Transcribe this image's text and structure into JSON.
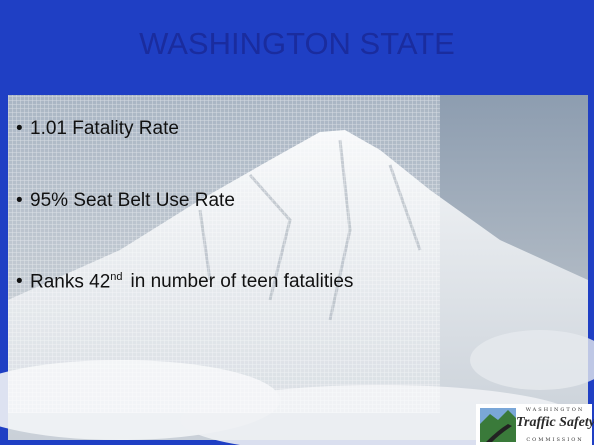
{
  "title": "WASHINGTON STATE",
  "bullets": [
    {
      "text": "1.01 Fatality Rate"
    },
    {
      "text": "95% Seat Belt Use Rate"
    },
    {
      "text": "Ranks 42",
      "superscript": "nd",
      "rest": "in number of teen fatalities"
    }
  ],
  "logo": {
    "top": "WASHINGTON",
    "name": "Traffic Safety",
    "bottom": "COMMISSION"
  }
}
